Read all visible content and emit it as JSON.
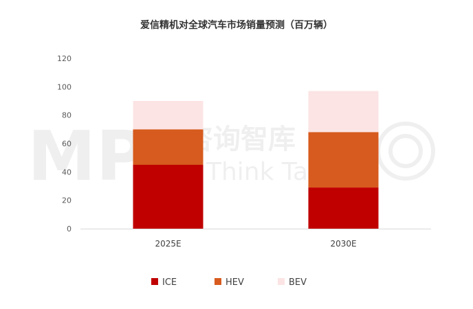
{
  "chart_data": {
    "type": "bar",
    "stacked": true,
    "title": "爱信精机对全球汽车市场销量预测（百万辆）",
    "categories": [
      "2025E",
      "2030E"
    ],
    "series": [
      {
        "name": "ICE",
        "values": [
          45,
          29
        ],
        "color": "#C00000"
      },
      {
        "name": "HEV",
        "values": [
          25,
          39
        ],
        "color": "#D75B1E"
      },
      {
        "name": "BEV",
        "values": [
          20,
          29
        ],
        "color": "#FCE4E4"
      }
    ],
    "ylim": [
      0,
      120
    ],
    "yticks": [
      0,
      20,
      40,
      60,
      80,
      100,
      120
    ],
    "grid": false,
    "legend": "bottom",
    "xlabel": "",
    "ylabel": ""
  },
  "watermark": {
    "logo": "MP",
    "cn_text": "中大咨询智库",
    "en_text": "Think Tank"
  }
}
